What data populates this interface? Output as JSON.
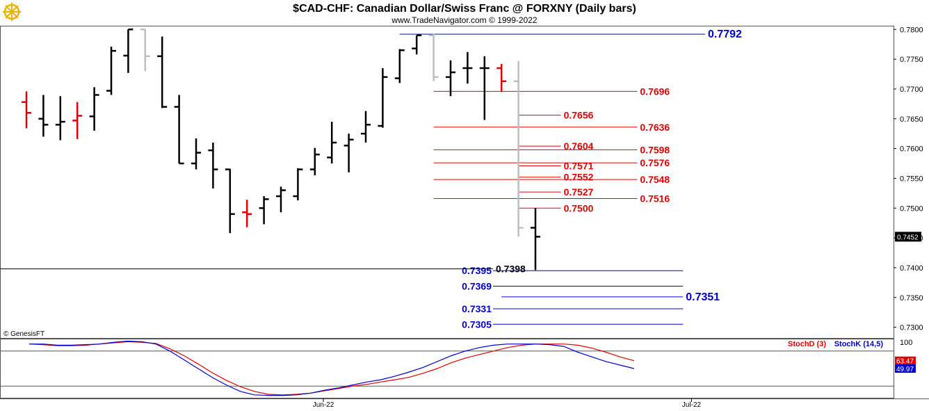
{
  "colors": {
    "red": "#e00000",
    "blue": "#0000cc",
    "black": "#000000",
    "gray": "#bdbdbd",
    "logo": "#e8b400"
  },
  "header": {
    "title": "$CAD-CHF:  Canadian Dollar/Swiss Franc @ FORXNY  (Daily bars)",
    "subtitle": "www.TradeNavigator.com © 1999-2022",
    "logo_icon": "ship-wheel-icon"
  },
  "watermark": "© GenesisFT",
  "price_axis": {
    "ylim": [
      0.7282,
      0.7805
    ],
    "ticks": [
      "0.7800",
      "0.7750",
      "0.7700",
      "0.7650",
      "0.7600",
      "0.7550",
      "0.7500",
      "0.7450",
      "0.7400",
      "0.7350",
      "0.7300"
    ],
    "last_price": "0.7452"
  },
  "time_axis": {
    "labels": [
      "Jun-22",
      "Jul-22"
    ]
  },
  "chart_data": {
    "type": "ohlc",
    "title": "$CAD-CHF:  Canadian Dollar/Swiss Franc @ FORXNY  (Daily bars)",
    "bars": [
      {
        "o": 0.7678,
        "h": 0.7696,
        "l": 0.7634,
        "c": 0.766,
        "color": "red"
      },
      {
        "o": 0.765,
        "h": 0.769,
        "l": 0.762,
        "c": 0.764,
        "color": "black"
      },
      {
        "o": 0.764,
        "h": 0.7688,
        "l": 0.7614,
        "c": 0.7645,
        "color": "black"
      },
      {
        "o": 0.7647,
        "h": 0.7678,
        "l": 0.7616,
        "c": 0.7655,
        "color": "red"
      },
      {
        "o": 0.7654,
        "h": 0.7703,
        "l": 0.763,
        "c": 0.769,
        "color": "black"
      },
      {
        "o": 0.7697,
        "h": 0.7771,
        "l": 0.769,
        "c": 0.7764,
        "color": "black"
      },
      {
        "o": 0.7756,
        "h": 0.78,
        "l": 0.7727,
        "c": 0.78,
        "color": "black"
      },
      {
        "o": 0.78,
        "h": 0.78,
        "l": 0.773,
        "c": 0.7755,
        "color": "gray"
      },
      {
        "o": 0.7755,
        "h": 0.7788,
        "l": 0.7668,
        "c": 0.767,
        "color": "black"
      },
      {
        "o": 0.767,
        "h": 0.769,
        "l": 0.7575,
        "c": 0.7575,
        "color": "black"
      },
      {
        "o": 0.7575,
        "h": 0.7617,
        "l": 0.7565,
        "c": 0.7593,
        "color": "black"
      },
      {
        "o": 0.7597,
        "h": 0.761,
        "l": 0.7533,
        "c": 0.7565,
        "color": "black"
      },
      {
        "o": 0.7565,
        "h": 0.7566,
        "l": 0.7458,
        "c": 0.749,
        "color": "black"
      },
      {
        "o": 0.7493,
        "h": 0.7514,
        "l": 0.7468,
        "c": 0.749,
        "color": "red"
      },
      {
        "o": 0.75,
        "h": 0.752,
        "l": 0.7473,
        "c": 0.7515,
        "color": "black"
      },
      {
        "o": 0.752,
        "h": 0.7536,
        "l": 0.7493,
        "c": 0.753,
        "color": "black"
      },
      {
        "o": 0.752,
        "h": 0.7567,
        "l": 0.7513,
        "c": 0.7565,
        "color": "black"
      },
      {
        "o": 0.7565,
        "h": 0.7601,
        "l": 0.7555,
        "c": 0.759,
        "color": "black"
      },
      {
        "o": 0.7585,
        "h": 0.7645,
        "l": 0.7575,
        "c": 0.761,
        "color": "black"
      },
      {
        "o": 0.7605,
        "h": 0.7625,
        "l": 0.756,
        "c": 0.7615,
        "color": "black"
      },
      {
        "o": 0.7625,
        "h": 0.7663,
        "l": 0.761,
        "c": 0.764,
        "color": "black"
      },
      {
        "o": 0.7638,
        "h": 0.7735,
        "l": 0.7635,
        "c": 0.772,
        "color": "black"
      },
      {
        "o": 0.7718,
        "h": 0.7767,
        "l": 0.771,
        "c": 0.7765,
        "color": "black"
      },
      {
        "o": 0.7768,
        "h": 0.779,
        "l": 0.7758,
        "c": 0.779,
        "color": "black"
      },
      {
        "o": 0.779,
        "h": 0.7793,
        "l": 0.7713,
        "c": 0.772,
        "color": "gray"
      },
      {
        "o": 0.772,
        "h": 0.7748,
        "l": 0.7688,
        "c": 0.7728,
        "color": "black"
      },
      {
        "o": 0.7735,
        "h": 0.7762,
        "l": 0.7709,
        "c": 0.7735,
        "color": "black"
      },
      {
        "o": 0.7735,
        "h": 0.7755,
        "l": 0.7648,
        "c": 0.7735,
        "color": "black"
      },
      {
        "o": 0.7735,
        "h": 0.7742,
        "l": 0.7695,
        "c": 0.7713,
        "color": "red"
      },
      {
        "o": 0.7713,
        "h": 0.7747,
        "l": 0.7452,
        "c": 0.7467,
        "color": "gray"
      },
      {
        "o": 0.7467,
        "h": 0.75,
        "l": 0.7396,
        "c": 0.7452,
        "color": "black"
      }
    ],
    "levels": [
      {
        "label": "0.7792",
        "value": 0.7792,
        "color": "blue",
        "start_bar": 22,
        "end_bar": 40,
        "label_side": "right",
        "big": true
      },
      {
        "label": "0.7696",
        "value": 0.7696,
        "color": "red",
        "start_bar": 24,
        "end_bar": 36,
        "label_side": "right",
        "big": false
      },
      {
        "label": "0.7656",
        "value": 0.7656,
        "color": "red",
        "start_bar": 29,
        "end_bar": 31.5,
        "label_side": "right",
        "big": false
      },
      {
        "label": "0.7636",
        "value": 0.7636,
        "color": "red",
        "start_bar": 24,
        "end_bar": 36,
        "label_side": "right",
        "big": false
      },
      {
        "label": "0.7604",
        "value": 0.7604,
        "color": "red",
        "start_bar": 29,
        "end_bar": 31.5,
        "label_side": "right",
        "big": false
      },
      {
        "label": "0.7598",
        "value": 0.7598,
        "color": "red",
        "start_bar": 24,
        "end_bar": 36,
        "label_side": "right",
        "big": false
      },
      {
        "label": "0.7576",
        "value": 0.7576,
        "color": "red",
        "start_bar": 24,
        "end_bar": 36,
        "label_side": "right",
        "big": false
      },
      {
        "label": "0.7571",
        "value": 0.7571,
        "color": "red",
        "start_bar": 29,
        "end_bar": 31.5,
        "label_side": "right",
        "big": false
      },
      {
        "label": "0.7552",
        "value": 0.7552,
        "color": "red",
        "start_bar": 29,
        "end_bar": 31.5,
        "label_side": "right",
        "big": false
      },
      {
        "label": "0.7548",
        "value": 0.7548,
        "color": "red",
        "start_bar": 24,
        "end_bar": 36,
        "label_side": "right",
        "big": false
      },
      {
        "label": "0.7527",
        "value": 0.7527,
        "color": "red",
        "start_bar": 29,
        "end_bar": 31.5,
        "label_side": "right",
        "big": false
      },
      {
        "label": "0.7516",
        "value": 0.7516,
        "color": "red",
        "start_bar": 24,
        "end_bar": 36,
        "label_side": "right",
        "big": false
      },
      {
        "label": "0.7500",
        "value": 0.75,
        "color": "red",
        "start_bar": 29,
        "end_bar": 31.5,
        "label_side": "right",
        "big": false
      },
      {
        "label": "0.7398",
        "value": 0.7398,
        "color": "black",
        "start_bar": -15,
        "end_bar": 27.5,
        "label_side": "right",
        "big": false
      },
      {
        "label": "0.7395",
        "value": 0.7395,
        "color": "blue",
        "start_bar": 27.5,
        "end_bar": 38.7,
        "label_side": "left",
        "big": false
      },
      {
        "label": "0.7369",
        "value": 0.7369,
        "color": "blue",
        "start_bar": 27.5,
        "end_bar": 38.7,
        "label_side": "left",
        "big": false
      },
      {
        "label": "0.7351",
        "value": 0.7351,
        "color": "blue",
        "start_bar": 28,
        "end_bar": 38.7,
        "label_side": "right",
        "big": true
      },
      {
        "label": "0.7331",
        "value": 0.7331,
        "color": "blue",
        "start_bar": 27.5,
        "end_bar": 38.7,
        "label_side": "left",
        "big": false
      },
      {
        "label": "0.7305",
        "value": 0.7305,
        "color": "blue",
        "start_bar": 27.5,
        "end_bar": 38.7,
        "label_side": "left",
        "big": false
      }
    ],
    "x_labels": [
      {
        "label": "Jun-22",
        "bar": 17.5
      },
      {
        "label": "Jul-22",
        "bar": 39.2
      }
    ]
  },
  "stochastic": {
    "ylim": [
      0,
      100
    ],
    "axis_label": "100",
    "guides": [
      80,
      20
    ],
    "legend": [
      {
        "label": "StochD (3)",
        "color": "red"
      },
      {
        "label": "StochK (14,5)",
        "color": "blue"
      }
    ],
    "d_value": "63.47",
    "k_value": "49.97",
    "d_series": [
      92,
      91,
      89,
      89,
      90,
      92,
      94,
      96,
      95,
      93,
      84,
      72,
      58,
      43,
      30,
      19,
      11,
      6,
      5,
      6,
      8,
      12,
      16,
      20,
      23,
      27,
      31,
      35,
      42,
      50,
      60,
      68,
      74,
      80,
      86,
      90,
      92,
      92,
      92,
      90,
      85,
      78,
      70,
      63.5
    ],
    "k_series": [
      92,
      92,
      90,
      90,
      91,
      92,
      95,
      97,
      96,
      92,
      80,
      65,
      50,
      35,
      22,
      11,
      5,
      4,
      4,
      5,
      8,
      13,
      17,
      22,
      27,
      31,
      37,
      44,
      52,
      62,
      72,
      80,
      86,
      90,
      92,
      92,
      92,
      91,
      88,
      78,
      70,
      62,
      56,
      50
    ]
  }
}
